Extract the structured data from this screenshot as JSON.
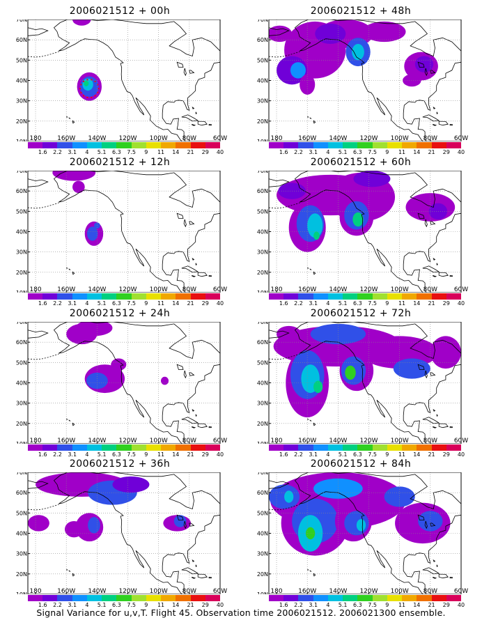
{
  "caption": "Signal Variance for u,v,T. Flight 45. Observation time 2006021512. 2006021300 ensemble.",
  "axes": {
    "lon_ticks": [
      "180",
      "160W",
      "140W",
      "120W",
      "100W",
      "80W",
      "60W"
    ],
    "lat_ticks": [
      "70N",
      "60N",
      "50N",
      "40N",
      "30N",
      "20N",
      "10N"
    ],
    "lon_range_deg_east": [
      -185,
      -60
    ],
    "lat_range_deg_north": [
      10,
      70
    ],
    "grid": "dotted"
  },
  "colorbar": {
    "labels": [
      "1.6",
      "2.2",
      "3.1",
      "4",
      "5.1",
      "6.3",
      "7.5",
      "9",
      "11",
      "14",
      "21",
      "29",
      "40"
    ],
    "colors": [
      "#a000c8",
      "#7000d8",
      "#3050e8",
      "#1090ff",
      "#00c0e0",
      "#00d080",
      "#30d020",
      "#a0e030",
      "#e8e000",
      "#f0a800",
      "#f07000",
      "#e81010",
      "#d8005a"
    ]
  },
  "panels": [
    {
      "title": "2006021512 + 00h"
    },
    {
      "title": "2006021512 + 48h"
    },
    {
      "title": "2006021512 + 12h"
    },
    {
      "title": "2006021512 + 60h"
    },
    {
      "title": "2006021512 + 24h"
    },
    {
      "title": "2006021512 + 72h"
    },
    {
      "title": "2006021512 + 36h"
    },
    {
      "title": "2006021512 + 84h"
    }
  ]
}
